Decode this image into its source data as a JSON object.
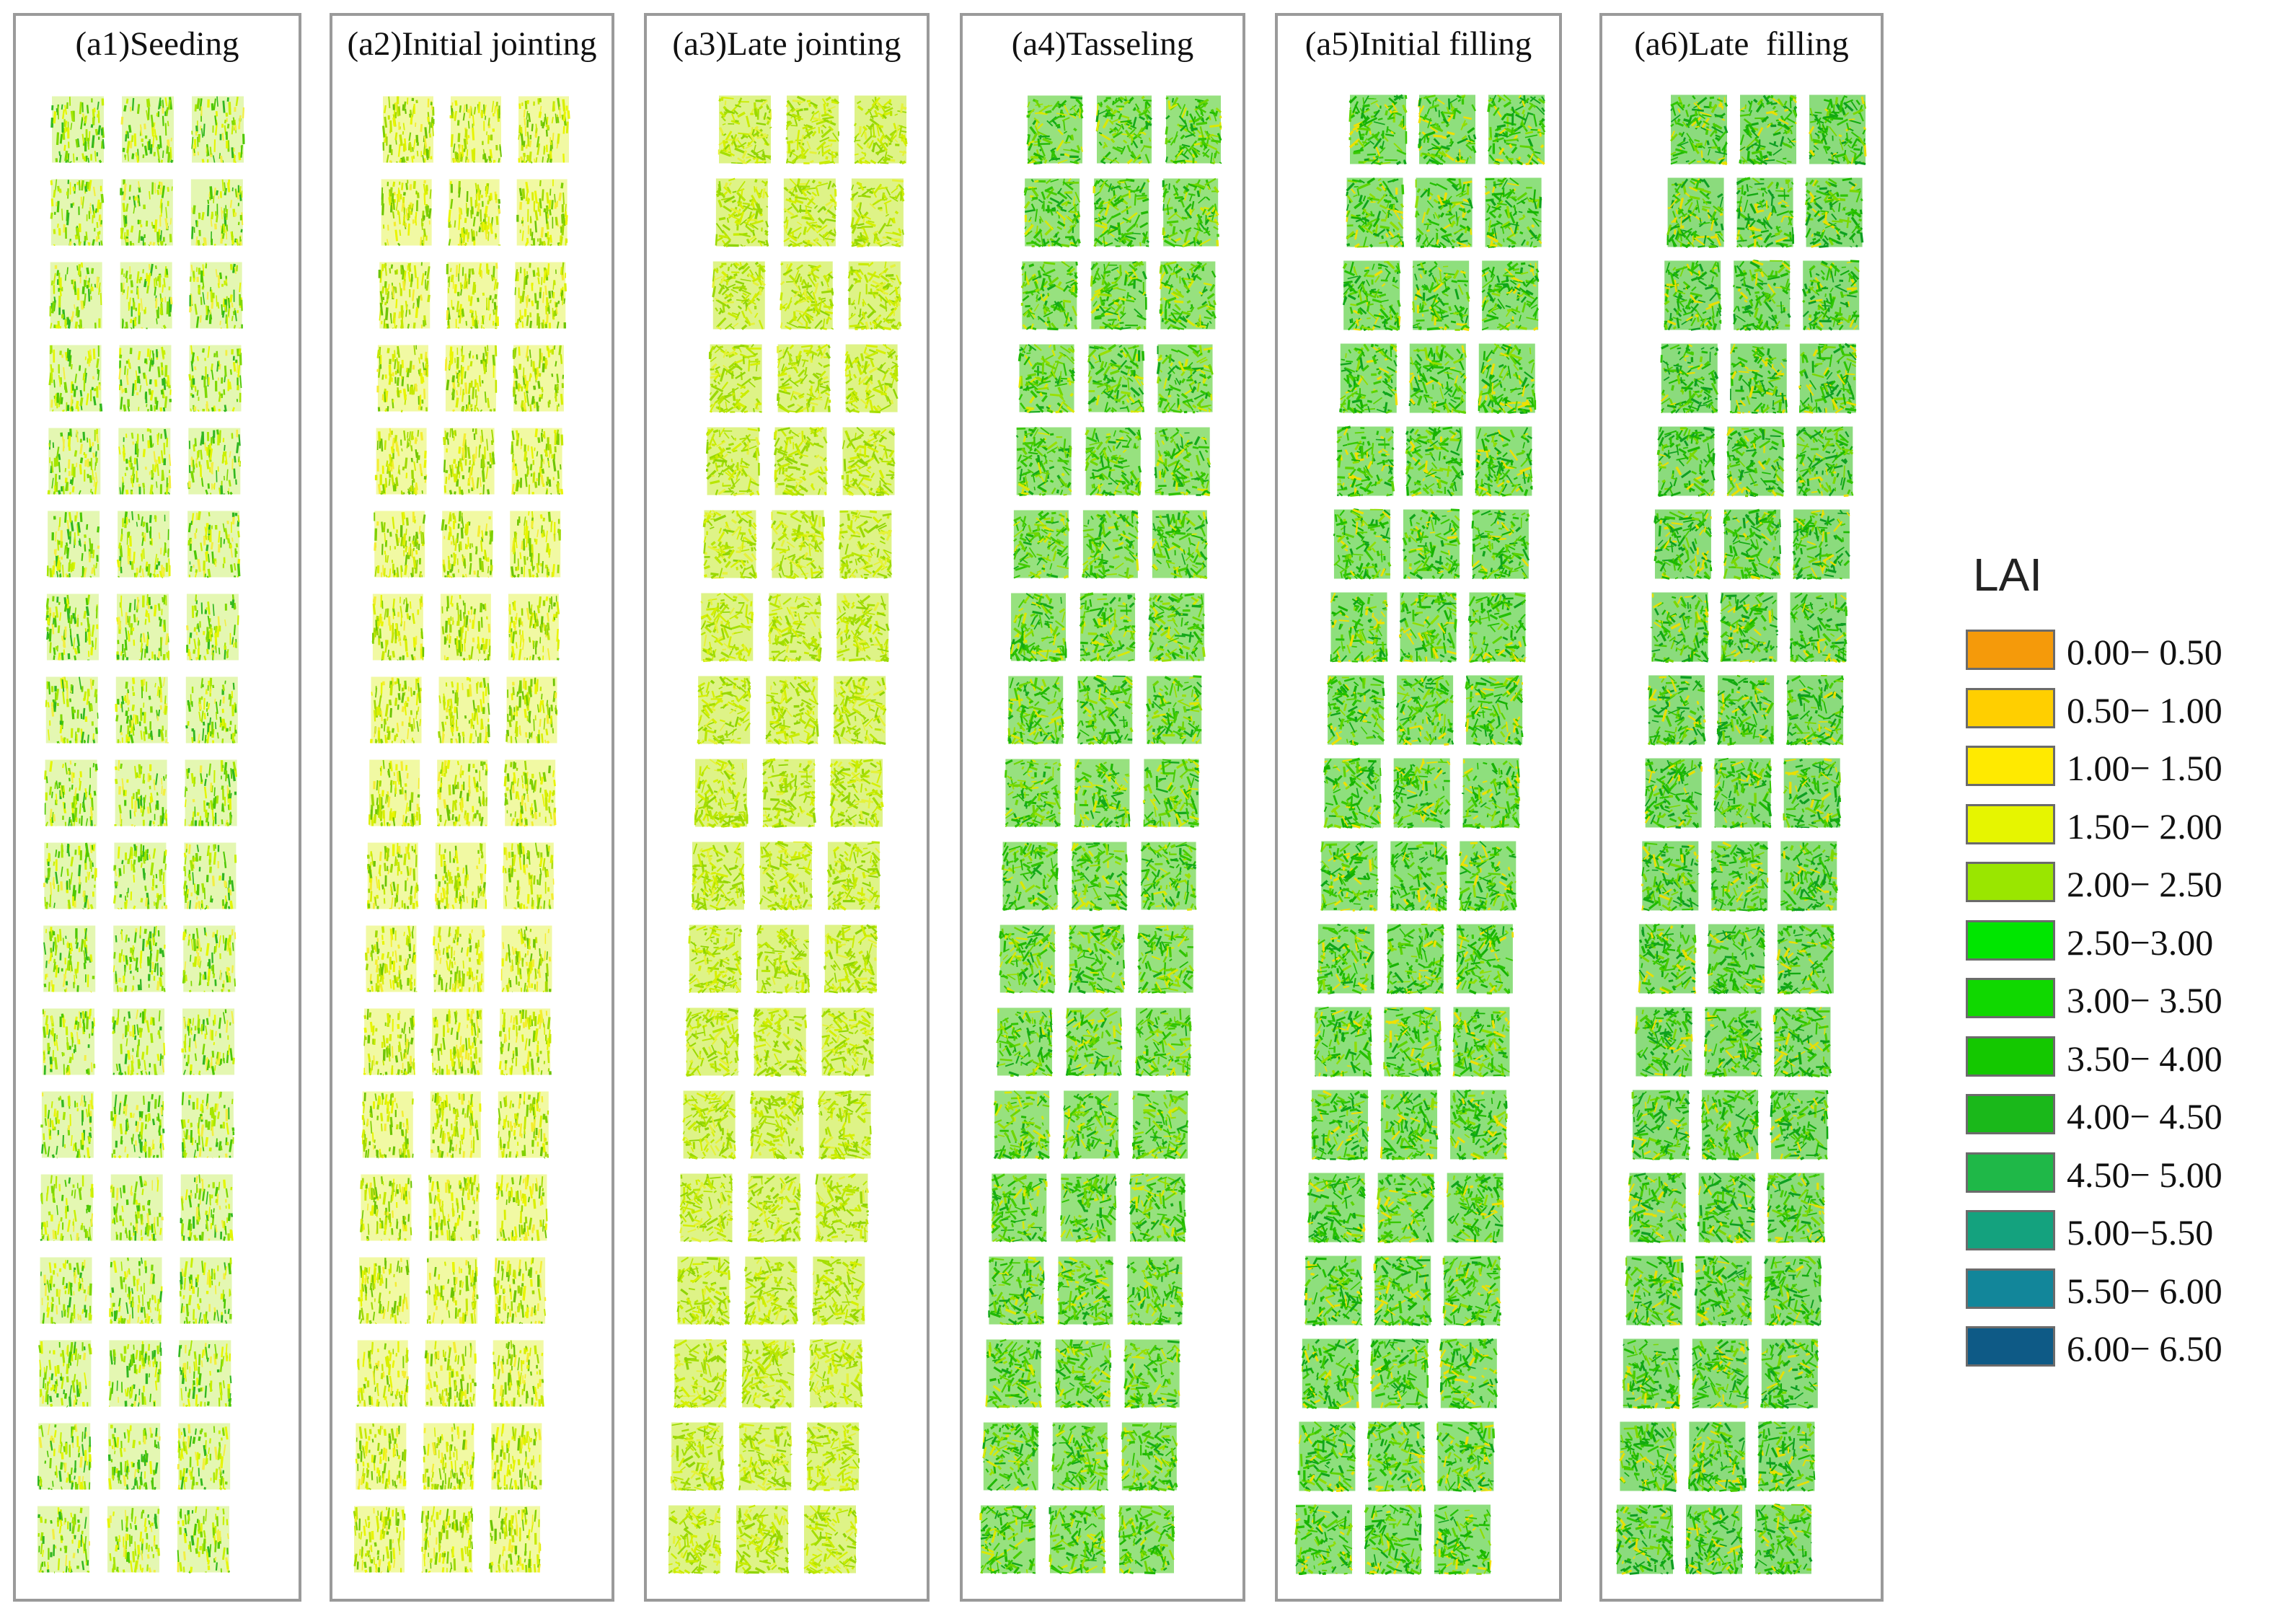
{
  "panels": [
    {
      "title": "(a1)Seeding",
      "palette": [
        "#a6e600",
        "#c8f000",
        "#e4f600",
        "#7dd800",
        "#4cc800",
        "#30b820",
        "#f3ef40"
      ],
      "density": 0.55
    },
    {
      "title": "(a2)Initial jointing",
      "palette": [
        "#d9ef00",
        "#e9f500",
        "#c5e800",
        "#9fd900",
        "#f4ed30",
        "#7ed000",
        "#6cc400"
      ],
      "density": 0.65
    },
    {
      "title": "(a3)Late jointing",
      "palette": [
        "#b8e600",
        "#c9ec00",
        "#a4de00",
        "#d6f000",
        "#8fd400",
        "#e5f23a",
        "#9ad800"
      ],
      "density": 0.85
    },
    {
      "title": "(a4)Tasseling",
      "palette": [
        "#2fc400",
        "#45cc00",
        "#1fb800",
        "#6ed600",
        "#99e000",
        "#13a91a",
        "#dce800"
      ],
      "density": 0.9
    },
    {
      "title": "(a5)Initial filling",
      "palette": [
        "#22c000",
        "#16b300",
        "#38c800",
        "#0ea51a",
        "#5dd400",
        "#8fde00",
        "#f0e000"
      ],
      "density": 0.92
    },
    {
      "title": "(a6)Late  filling",
      "palette": [
        "#1cb900",
        "#2ec500",
        "#12aa10",
        "#48cc00",
        "#0d9f22",
        "#7ad800",
        "#eadf00"
      ],
      "density": 0.93
    }
  ],
  "legend": {
    "title": "LAI",
    "items": [
      {
        "label": "0.00− 0.50",
        "color": "#f59a0a"
      },
      {
        "label": "0.50− 1.00",
        "color": "#ffcf00"
      },
      {
        "label": "1.00− 1.50",
        "color": "#ffea00"
      },
      {
        "label": "1.50− 2.00",
        "color": "#e6f500"
      },
      {
        "label": "2.00− 2.50",
        "color": "#9ae600"
      },
      {
        "label": "2.50−3.00",
        "color": "#00e600"
      },
      {
        "label": "3.00− 3.50",
        "color": "#10d800"
      },
      {
        "label": "3.50− 4.00",
        "color": "#14c800"
      },
      {
        "label": "4.00− 4.50",
        "color": "#1ab81a"
      },
      {
        "label": "4.50− 5.00",
        "color": "#1fb848"
      },
      {
        "label": "5.00−5.50",
        "color": "#14a27e"
      },
      {
        "label": "5.50− 6.00",
        "color": "#12869a"
      },
      {
        "label": "6.00− 6.50",
        "color": "#0e5a86"
      }
    ]
  }
}
